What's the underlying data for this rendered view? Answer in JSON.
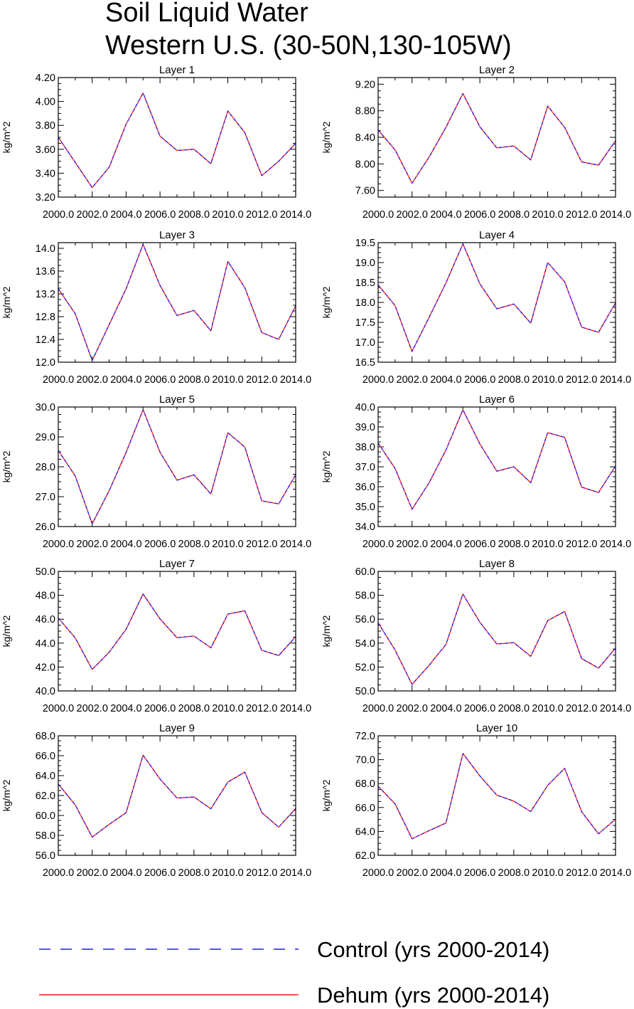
{
  "title": "Soil Liquid Water",
  "subtitle": "Western U.S. (30-50N,130-105W)",
  "legend": {
    "entries": [
      {
        "label": "Control (yrs 2000-2014)",
        "color": "#1a1aff",
        "style": "dashed"
      },
      {
        "label": "Dehum (yrs 2000-2014)",
        "color": "#ff1a1a",
        "style": "solid"
      }
    ]
  },
  "chart_data": [
    {
      "type": "line",
      "title": "Layer 1",
      "ylabel": "kg/m^2",
      "x": [
        2000,
        2001,
        2002,
        2003,
        2004,
        2005,
        2006,
        2007,
        2008,
        2009,
        2010,
        2011,
        2012,
        2013,
        2014
      ],
      "xticks": [
        2000,
        2002,
        2004,
        2006,
        2008,
        2010,
        2012,
        2014
      ],
      "xtick_labels": [
        "2000.0",
        "2002.0",
        "2004.0",
        "2006.0",
        "2008.0",
        "2010.0",
        "2012.0",
        "2014.0"
      ],
      "ylim": [
        3.2,
        4.2
      ],
      "yticks": [
        3.2,
        3.4,
        3.6,
        3.8,
        4.0,
        4.2
      ],
      "ytick_labels": [
        "3.20",
        "3.40",
        "3.60",
        "3.80",
        "4.00",
        "4.20"
      ],
      "series": [
        {
          "name": "Control (yrs 2000-2014)",
          "values": [
            3.7,
            3.49,
            3.28,
            3.45,
            3.81,
            4.07,
            3.71,
            3.59,
            3.6,
            3.48,
            3.92,
            3.74,
            3.38,
            3.5,
            3.65
          ]
        },
        {
          "name": "Dehum (yrs 2000-2014)",
          "values": [
            3.7,
            3.49,
            3.28,
            3.45,
            3.81,
            4.07,
            3.71,
            3.59,
            3.6,
            3.48,
            3.92,
            3.74,
            3.38,
            3.5,
            3.65
          ]
        }
      ]
    },
    {
      "type": "line",
      "title": "Layer 2",
      "ylabel": "kg/m^2",
      "x": [
        2000,
        2001,
        2002,
        2003,
        2004,
        2005,
        2006,
        2007,
        2008,
        2009,
        2010,
        2011,
        2012,
        2013,
        2014
      ],
      "xticks": [
        2000,
        2002,
        2004,
        2006,
        2008,
        2010,
        2012,
        2014
      ],
      "xtick_labels": [
        "2000.0",
        "2002.0",
        "2004.0",
        "2006.0",
        "2008.0",
        "2010.0",
        "2012.0",
        "2014.0"
      ],
      "ylim": [
        7.5,
        9.3
      ],
      "yticks": [
        7.6,
        8.0,
        8.4,
        8.8,
        9.2
      ],
      "ytick_labels": [
        "7.60",
        "8.00",
        "8.40",
        "8.80",
        "9.20"
      ],
      "series": [
        {
          "name": "Control (yrs 2000-2014)",
          "values": [
            8.51,
            8.21,
            7.71,
            8.1,
            8.55,
            9.06,
            8.56,
            8.24,
            8.27,
            8.06,
            8.87,
            8.55,
            8.03,
            7.98,
            8.35
          ]
        },
        {
          "name": "Dehum (yrs 2000-2014)",
          "values": [
            8.51,
            8.21,
            7.71,
            8.1,
            8.55,
            9.06,
            8.56,
            8.24,
            8.27,
            8.06,
            8.87,
            8.55,
            8.03,
            7.98,
            8.35
          ]
        }
      ]
    },
    {
      "type": "line",
      "title": "Layer 3",
      "ylabel": "kg/m^2",
      "x": [
        2000,
        2001,
        2002,
        2003,
        2004,
        2005,
        2006,
        2007,
        2008,
        2009,
        2010,
        2011,
        2012,
        2013,
        2014
      ],
      "xticks": [
        2000,
        2002,
        2004,
        2006,
        2008,
        2010,
        2012,
        2014
      ],
      "xtick_labels": [
        "2000.0",
        "2002.0",
        "2004.0",
        "2006.0",
        "2008.0",
        "2010.0",
        "2012.0",
        "2014.0"
      ],
      "ylim": [
        12.0,
        14.1
      ],
      "yticks": [
        12.0,
        12.4,
        12.8,
        13.2,
        13.6,
        14.0
      ],
      "ytick_labels": [
        "12.0",
        "12.4",
        "12.8",
        "13.2",
        "13.6",
        "14.0"
      ],
      "series": [
        {
          "name": "Control (yrs 2000-2014)",
          "values": [
            13.29,
            12.85,
            12.03,
            12.66,
            13.29,
            14.07,
            13.35,
            12.82,
            12.91,
            12.55,
            13.77,
            13.31,
            12.52,
            12.4,
            12.99
          ]
        },
        {
          "name": "Dehum (yrs 2000-2014)",
          "values": [
            13.29,
            12.85,
            12.03,
            12.66,
            13.29,
            14.07,
            13.35,
            12.82,
            12.91,
            12.55,
            13.77,
            13.31,
            12.52,
            12.4,
            12.99
          ]
        }
      ]
    },
    {
      "type": "line",
      "title": "Layer 4",
      "ylabel": "kg/m^2",
      "x": [
        2000,
        2001,
        2002,
        2003,
        2004,
        2005,
        2006,
        2007,
        2008,
        2009,
        2010,
        2011,
        2012,
        2013,
        2014
      ],
      "xticks": [
        2000,
        2002,
        2004,
        2006,
        2008,
        2010,
        2012,
        2014
      ],
      "xtick_labels": [
        "2000.0",
        "2002.0",
        "2004.0",
        "2006.0",
        "2008.0",
        "2010.0",
        "2012.0",
        "2014.0"
      ],
      "ylim": [
        16.5,
        19.5
      ],
      "yticks": [
        16.5,
        17.0,
        17.5,
        18.0,
        18.5,
        19.0,
        19.5
      ],
      "ytick_labels": [
        "16.5",
        "17.0",
        "17.5",
        "18.0",
        "18.5",
        "19.0",
        "19.5"
      ],
      "series": [
        {
          "name": "Control (yrs 2000-2014)",
          "values": [
            18.44,
            17.92,
            16.77,
            17.62,
            18.49,
            19.47,
            18.47,
            17.84,
            17.96,
            17.48,
            19.0,
            18.52,
            17.38,
            17.25,
            17.99
          ]
        },
        {
          "name": "Dehum (yrs 2000-2014)",
          "values": [
            18.44,
            17.92,
            16.77,
            17.62,
            18.49,
            19.47,
            18.47,
            17.84,
            17.96,
            17.48,
            19.0,
            18.52,
            17.38,
            17.25,
            17.99
          ]
        }
      ]
    },
    {
      "type": "line",
      "title": "Layer 5",
      "ylabel": "kg/m^2",
      "x": [
        2000,
        2001,
        2002,
        2003,
        2004,
        2005,
        2006,
        2007,
        2008,
        2009,
        2010,
        2011,
        2012,
        2013,
        2014
      ],
      "xticks": [
        2000,
        2002,
        2004,
        2006,
        2008,
        2010,
        2012,
        2014
      ],
      "xtick_labels": [
        "2000.0",
        "2002.0",
        "2004.0",
        "2006.0",
        "2008.0",
        "2010.0",
        "2012.0",
        "2014.0"
      ],
      "ylim": [
        26.0,
        30.0
      ],
      "yticks": [
        26.0,
        27.0,
        28.0,
        29.0,
        30.0
      ],
      "ytick_labels": [
        "26.0",
        "27.0",
        "28.0",
        "29.0",
        "30.0"
      ],
      "series": [
        {
          "name": "Control (yrs 2000-2014)",
          "values": [
            28.55,
            27.69,
            26.09,
            27.2,
            28.48,
            29.91,
            28.49,
            27.55,
            27.73,
            27.09,
            29.14,
            28.66,
            26.86,
            26.76,
            27.73
          ]
        },
        {
          "name": "Dehum (yrs 2000-2014)",
          "values": [
            28.55,
            27.69,
            26.09,
            27.2,
            28.48,
            29.91,
            28.49,
            27.55,
            27.73,
            27.09,
            29.14,
            28.66,
            26.86,
            26.76,
            27.73
          ]
        }
      ]
    },
    {
      "type": "line",
      "title": "Layer 6",
      "ylabel": "kg/m^2",
      "x": [
        2000,
        2001,
        2002,
        2003,
        2004,
        2005,
        2006,
        2007,
        2008,
        2009,
        2010,
        2011,
        2012,
        2013,
        2014
      ],
      "xticks": [
        2000,
        2002,
        2004,
        2006,
        2008,
        2010,
        2012,
        2014
      ],
      "xtick_labels": [
        "2000.0",
        "2002.0",
        "2004.0",
        "2006.0",
        "2008.0",
        "2010.0",
        "2012.0",
        "2014.0"
      ],
      "ylim": [
        34.0,
        40.0
      ],
      "yticks": [
        34.0,
        35.0,
        36.0,
        37.0,
        38.0,
        39.0,
        40.0
      ],
      "ytick_labels": [
        "34.0",
        "35.0",
        "36.0",
        "37.0",
        "38.0",
        "39.0",
        "40.0"
      ],
      "series": [
        {
          "name": "Control (yrs 2000-2014)",
          "values": [
            38.19,
            36.91,
            34.87,
            36.19,
            37.84,
            39.86,
            38.15,
            36.78,
            37.0,
            36.2,
            38.71,
            38.48,
            35.98,
            35.71,
            37.04
          ]
        },
        {
          "name": "Dehum (yrs 2000-2014)",
          "values": [
            38.19,
            36.91,
            34.87,
            36.19,
            37.84,
            39.86,
            38.15,
            36.78,
            37.0,
            36.2,
            38.71,
            38.48,
            35.98,
            35.71,
            37.04
          ]
        }
      ]
    },
    {
      "type": "line",
      "title": "Layer 7",
      "ylabel": "kg/m^2",
      "x": [
        2000,
        2001,
        2002,
        2003,
        2004,
        2005,
        2006,
        2007,
        2008,
        2009,
        2010,
        2011,
        2012,
        2013,
        2014
      ],
      "xticks": [
        2000,
        2002,
        2004,
        2006,
        2008,
        2010,
        2012,
        2014
      ],
      "xtick_labels": [
        "2000.0",
        "2002.0",
        "2004.0",
        "2006.0",
        "2008.0",
        "2010.0",
        "2012.0",
        "2014.0"
      ],
      "ylim": [
        40.0,
        50.0
      ],
      "yticks": [
        40.0,
        42.0,
        44.0,
        46.0,
        48.0,
        50.0
      ],
      "ytick_labels": [
        "40.0",
        "42.0",
        "44.0",
        "46.0",
        "48.0",
        "50.0"
      ],
      "series": [
        {
          "name": "Control (yrs 2000-2014)",
          "values": [
            46.1,
            44.43,
            41.8,
            43.24,
            45.16,
            48.11,
            46.03,
            44.45,
            44.59,
            43.61,
            46.43,
            46.71,
            43.4,
            42.96,
            44.54
          ]
        },
        {
          "name": "Dehum (yrs 2000-2014)",
          "values": [
            46.1,
            44.43,
            41.8,
            43.24,
            45.16,
            48.11,
            46.03,
            44.45,
            44.59,
            43.61,
            46.43,
            46.71,
            43.4,
            42.96,
            44.54
          ]
        }
      ]
    },
    {
      "type": "line",
      "title": "Layer 8",
      "ylabel": "kg/m^2",
      "x": [
        2000,
        2001,
        2002,
        2003,
        2004,
        2005,
        2006,
        2007,
        2008,
        2009,
        2010,
        2011,
        2012,
        2013,
        2014
      ],
      "xticks": [
        2000,
        2002,
        2004,
        2006,
        2008,
        2010,
        2012,
        2014
      ],
      "xtick_labels": [
        "2000.0",
        "2002.0",
        "2004.0",
        "2006.0",
        "2008.0",
        "2010.0",
        "2012.0",
        "2014.0"
      ],
      "ylim": [
        50.0,
        60.0
      ],
      "yticks": [
        50.0,
        52.0,
        54.0,
        56.0,
        58.0,
        60.0
      ],
      "ytick_labels": [
        "50.0",
        "52.0",
        "54.0",
        "56.0",
        "58.0",
        "60.0"
      ],
      "series": [
        {
          "name": "Control (yrs 2000-2014)",
          "values": [
            55.7,
            53.41,
            50.55,
            52.13,
            53.89,
            58.11,
            55.75,
            53.93,
            54.04,
            52.89,
            55.88,
            56.65,
            52.71,
            51.91,
            53.58
          ]
        },
        {
          "name": "Dehum (yrs 2000-2014)",
          "values": [
            55.7,
            53.41,
            50.55,
            52.13,
            53.89,
            58.11,
            55.75,
            53.93,
            54.04,
            52.89,
            55.88,
            56.65,
            52.71,
            51.91,
            53.58
          ]
        }
      ]
    },
    {
      "type": "line",
      "title": "Layer 9",
      "ylabel": "kg/m^2",
      "x": [
        2000,
        2001,
        2002,
        2003,
        2004,
        2005,
        2006,
        2007,
        2008,
        2009,
        2010,
        2011,
        2012,
        2013,
        2014
      ],
      "xticks": [
        2000,
        2002,
        2004,
        2006,
        2008,
        2010,
        2012,
        2014
      ],
      "xtick_labels": [
        "2000.0",
        "2002.0",
        "2004.0",
        "2006.0",
        "2008.0",
        "2010.0",
        "2012.0",
        "2014.0"
      ],
      "ylim": [
        56.0,
        68.0
      ],
      "yticks": [
        56.0,
        58.0,
        60.0,
        62.0,
        64.0,
        66.0,
        68.0
      ],
      "ytick_labels": [
        "56.0",
        "58.0",
        "60.0",
        "62.0",
        "64.0",
        "66.0",
        "68.0"
      ],
      "series": [
        {
          "name": "Control (yrs 2000-2014)",
          "values": [
            63.15,
            61.06,
            57.83,
            59.11,
            60.28,
            66.05,
            63.66,
            61.75,
            61.86,
            60.67,
            63.35,
            64.35,
            60.3,
            58.82,
            60.7
          ]
        },
        {
          "name": "Dehum (yrs 2000-2014)",
          "values": [
            63.15,
            61.06,
            57.83,
            59.11,
            60.28,
            66.05,
            63.66,
            61.75,
            61.86,
            60.67,
            63.35,
            64.35,
            60.3,
            58.82,
            60.7
          ]
        }
      ]
    },
    {
      "type": "line",
      "title": "Layer 10",
      "ylabel": "kg/m^2",
      "x": [
        2000,
        2001,
        2002,
        2003,
        2004,
        2005,
        2006,
        2007,
        2008,
        2009,
        2010,
        2011,
        2012,
        2013,
        2014
      ],
      "xticks": [
        2000,
        2002,
        2004,
        2006,
        2008,
        2010,
        2012,
        2014
      ],
      "xtick_labels": [
        "2000.0",
        "2002.0",
        "2004.0",
        "2006.0",
        "2008.0",
        "2010.0",
        "2012.0",
        "2014.0"
      ],
      "ylim": [
        62.0,
        72.0
      ],
      "yticks": [
        62.0,
        64.0,
        66.0,
        68.0,
        70.0,
        72.0
      ],
      "ytick_labels": [
        "62.0",
        "64.0",
        "66.0",
        "68.0",
        "70.0",
        "72.0"
      ],
      "series": [
        {
          "name": "Control (yrs 2000-2014)",
          "values": [
            67.78,
            66.3,
            63.38,
            64.06,
            64.7,
            70.52,
            68.65,
            67.03,
            66.53,
            65.66,
            67.85,
            69.28,
            65.65,
            63.8,
            65.02
          ]
        },
        {
          "name": "Dehum (yrs 2000-2014)",
          "values": [
            67.78,
            66.3,
            63.38,
            64.06,
            64.7,
            70.52,
            68.65,
            67.03,
            66.53,
            65.66,
            67.85,
            69.28,
            65.65,
            63.8,
            65.02
          ]
        }
      ]
    }
  ]
}
